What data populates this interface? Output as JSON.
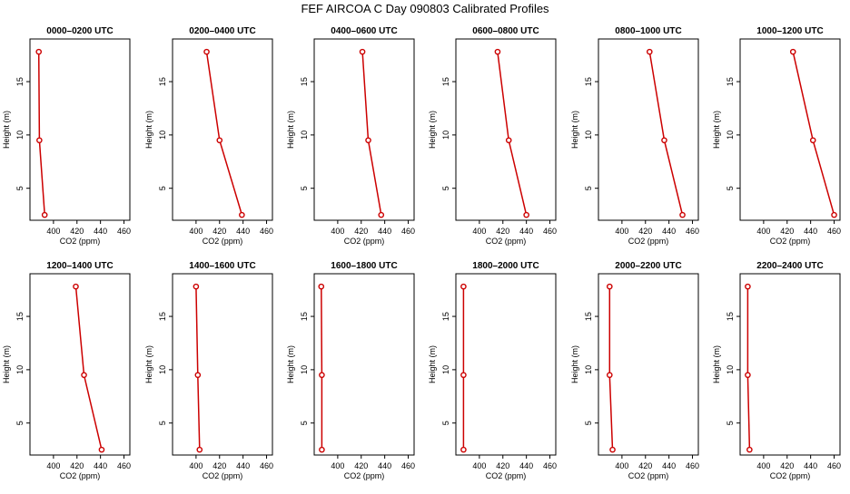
{
  "figure_title": "FEF AIRCOA C  Day 090803  Calibrated Profiles",
  "colors": {
    "line": "#cc0000",
    "axis": "#000000",
    "background": "#ffffff"
  },
  "chart_data": [
    {
      "type": "line",
      "title": "0000–0200 UTC",
      "xlabel": "CO2 (ppm)",
      "ylabel": "Height (m)",
      "xlim": [
        380,
        465
      ],
      "ylim": [
        2,
        19
      ],
      "xticks": [
        "400",
        "420",
        "440",
        "460"
      ],
      "yticks": [
        "5",
        "10",
        "15"
      ],
      "series": [
        {
          "x": [
            387.5,
            388.0,
            392.5
          ],
          "y": [
            17.8,
            9.5,
            2.5
          ]
        }
      ]
    },
    {
      "type": "line",
      "title": "0200–0400 UTC",
      "xlabel": "CO2 (ppm)",
      "ylabel": "Height (m)",
      "xlim": [
        380,
        465
      ],
      "ylim": [
        2,
        19
      ],
      "xticks": [
        "400",
        "420",
        "440",
        "460"
      ],
      "yticks": [
        "5",
        "10",
        "15"
      ],
      "series": [
        {
          "x": [
            409.0,
            420.0,
            439.0
          ],
          "y": [
            17.8,
            9.5,
            2.5
          ]
        }
      ]
    },
    {
      "type": "line",
      "title": "0400–0600 UTC",
      "xlabel": "CO2 (ppm)",
      "ylabel": "Height (m)",
      "xlim": [
        380,
        465
      ],
      "ylim": [
        2,
        19
      ],
      "xticks": [
        "400",
        "420",
        "440",
        "460"
      ],
      "yticks": [
        "5",
        "10",
        "15"
      ],
      "series": [
        {
          "x": [
            421.0,
            426.0,
            437.0
          ],
          "y": [
            17.8,
            9.5,
            2.5
          ]
        }
      ]
    },
    {
      "type": "line",
      "title": "0600–0800 UTC",
      "xlabel": "CO2 (ppm)",
      "ylabel": "Height (m)",
      "xlim": [
        380,
        465
      ],
      "ylim": [
        2,
        19
      ],
      "xticks": [
        "400",
        "420",
        "440",
        "460"
      ],
      "yticks": [
        "5",
        "10",
        "15"
      ],
      "series": [
        {
          "x": [
            415.5,
            425.0,
            440.0
          ],
          "y": [
            17.8,
            9.5,
            2.5
          ]
        }
      ]
    },
    {
      "type": "line",
      "title": "0800–1000 UTC",
      "xlabel": "CO2 (ppm)",
      "ylabel": "Height (m)",
      "xlim": [
        380,
        465
      ],
      "ylim": [
        2,
        19
      ],
      "xticks": [
        "400",
        "420",
        "440",
        "460"
      ],
      "yticks": [
        "5",
        "10",
        "15"
      ],
      "series": [
        {
          "x": [
            423.5,
            436.0,
            451.5
          ],
          "y": [
            17.8,
            9.5,
            2.5
          ]
        }
      ]
    },
    {
      "type": "line",
      "title": "1000–1200 UTC",
      "xlabel": "CO2 (ppm)",
      "ylabel": "Height (m)",
      "xlim": [
        380,
        465
      ],
      "ylim": [
        2,
        19
      ],
      "xticks": [
        "400",
        "420",
        "440",
        "460"
      ],
      "yticks": [
        "5",
        "10",
        "15"
      ],
      "series": [
        {
          "x": [
            425.0,
            442.0,
            460.0
          ],
          "y": [
            17.8,
            9.5,
            2.5
          ]
        }
      ]
    },
    {
      "type": "line",
      "title": "1200–1400 UTC",
      "xlabel": "CO2 (ppm)",
      "ylabel": "Height (m)",
      "xlim": [
        380,
        465
      ],
      "ylim": [
        2,
        19
      ],
      "xticks": [
        "400",
        "420",
        "440",
        "460"
      ],
      "yticks": [
        "5",
        "10",
        "15"
      ],
      "series": [
        {
          "x": [
            419.0,
            426.0,
            441.0
          ],
          "y": [
            17.8,
            9.5,
            2.5
          ]
        }
      ]
    },
    {
      "type": "line",
      "title": "1400–1600 UTC",
      "xlabel": "CO2 (ppm)",
      "ylabel": "Height (m)",
      "xlim": [
        380,
        465
      ],
      "ylim": [
        2,
        19
      ],
      "xticks": [
        "400",
        "420",
        "440",
        "460"
      ],
      "yticks": [
        "5",
        "10",
        "15"
      ],
      "series": [
        {
          "x": [
            400.0,
            401.5,
            403.0
          ],
          "y": [
            17.8,
            9.5,
            2.5
          ]
        }
      ]
    },
    {
      "type": "line",
      "title": "1600–1800 UTC",
      "xlabel": "CO2 (ppm)",
      "ylabel": "Height (m)",
      "xlim": [
        380,
        465
      ],
      "ylim": [
        2,
        19
      ],
      "xticks": [
        "400",
        "420",
        "440",
        "460"
      ],
      "yticks": [
        "5",
        "10",
        "15"
      ],
      "series": [
        {
          "x": [
            386.0,
            386.5,
            386.5
          ],
          "y": [
            17.8,
            9.5,
            2.5
          ]
        }
      ]
    },
    {
      "type": "line",
      "title": "1800–2000 UTC",
      "xlabel": "CO2 (ppm)",
      "ylabel": "Height (m)",
      "xlim": [
        380,
        465
      ],
      "ylim": [
        2,
        19
      ],
      "xticks": [
        "400",
        "420",
        "440",
        "460"
      ],
      "yticks": [
        "5",
        "10",
        "15"
      ],
      "series": [
        {
          "x": [
            386.5,
            386.5,
            386.5
          ],
          "y": [
            17.8,
            9.5,
            2.5
          ]
        }
      ]
    },
    {
      "type": "line",
      "title": "2000–2200 UTC",
      "xlabel": "CO2 (ppm)",
      "ylabel": "Height (m)",
      "xlim": [
        380,
        465
      ],
      "ylim": [
        2,
        19
      ],
      "xticks": [
        "400",
        "420",
        "440",
        "460"
      ],
      "yticks": [
        "5",
        "10",
        "15"
      ],
      "series": [
        {
          "x": [
            389.5,
            389.5,
            392.0
          ],
          "y": [
            17.8,
            9.5,
            2.5
          ]
        }
      ]
    },
    {
      "type": "line",
      "title": "2200–2400 UTC",
      "xlabel": "CO2 (ppm)",
      "ylabel": "Height (m)",
      "xlim": [
        380,
        465
      ],
      "ylim": [
        2,
        19
      ],
      "xticks": [
        "400",
        "420",
        "440",
        "460"
      ],
      "yticks": [
        "5",
        "10",
        "15"
      ],
      "series": [
        {
          "x": [
            386.5,
            386.5,
            388.0
          ],
          "y": [
            17.8,
            9.5,
            2.5
          ]
        }
      ]
    }
  ]
}
